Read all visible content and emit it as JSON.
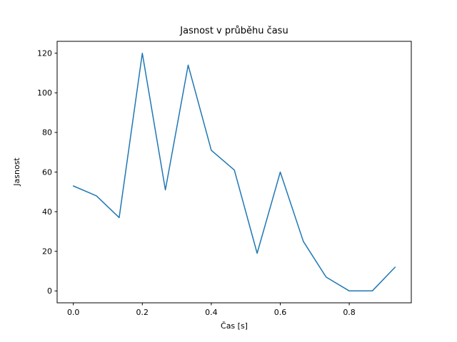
{
  "chart_data": {
    "type": "line",
    "title": "Jasnost v průběhu času",
    "xlabel": "Čas [s]",
    "ylabel": "Jasnost",
    "x": [
      0.0,
      0.067,
      0.133,
      0.2,
      0.267,
      0.333,
      0.4,
      0.467,
      0.533,
      0.6,
      0.667,
      0.733,
      0.8,
      0.867,
      0.933
    ],
    "values": [
      53,
      48,
      37,
      120,
      51,
      114,
      71,
      61,
      19,
      60,
      25,
      7,
      0,
      0,
      12
    ],
    "series_name": "jasnost",
    "line_color": "#1f77b4",
    "xlim": [
      -0.047,
      0.98
    ],
    "ylim": [
      -6,
      126
    ],
    "xticks": [
      0.0,
      0.2,
      0.4,
      0.6,
      0.8
    ],
    "xtick_labels": [
      "0.0",
      "0.2",
      "0.4",
      "0.6",
      "0.8"
    ],
    "yticks": [
      0,
      20,
      40,
      60,
      80,
      100,
      120
    ],
    "ytick_labels": [
      "0",
      "20",
      "40",
      "60",
      "80",
      "100",
      "120"
    ],
    "grid": false,
    "legend_position": "none",
    "background_color": "#ffffff"
  }
}
